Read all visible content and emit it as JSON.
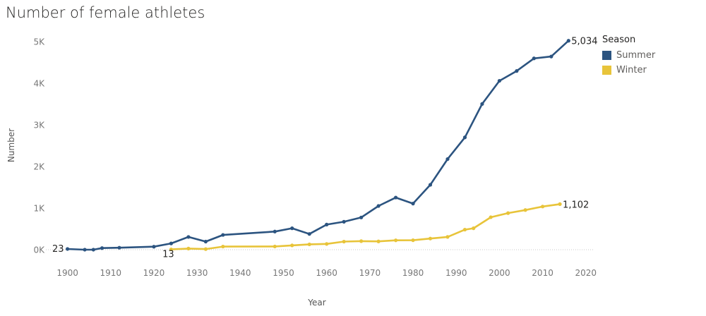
{
  "chart_data": {
    "type": "line",
    "title": "Number of female athletes",
    "xlabel": "Year",
    "ylabel": "Number",
    "xlim": [
      1895,
      2022
    ],
    "ylim": [
      -300,
      5250
    ],
    "x_ticks": [
      1900,
      1910,
      1920,
      1930,
      1940,
      1950,
      1960,
      1970,
      1980,
      1990,
      2000,
      2010,
      2020
    ],
    "y_ticks": [
      {
        "value": 0,
        "label": "0K"
      },
      {
        "value": 1000,
        "label": "1K"
      },
      {
        "value": 2000,
        "label": "2K"
      },
      {
        "value": 3000,
        "label": "3K"
      },
      {
        "value": 4000,
        "label": "4K"
      },
      {
        "value": 5000,
        "label": "5K"
      }
    ],
    "grid": false,
    "legend": {
      "title": "Season",
      "position": "right"
    },
    "series": [
      {
        "name": "Summer",
        "color": "#2c5480",
        "x": [
          1900,
          1904,
          1906,
          1908,
          1912,
          1920,
          1924,
          1928,
          1932,
          1936,
          1948,
          1952,
          1956,
          1960,
          1964,
          1968,
          1972,
          1976,
          1980,
          1984,
          1988,
          1992,
          1996,
          2000,
          2004,
          2008,
          2012,
          2016
        ],
        "y": [
          23,
          6,
          6,
          44,
          53,
          78,
          156,
          312,
          201,
          361,
          442,
          521,
          384,
          610,
          678,
          781,
          1058,
          1260,
          1115,
          1567,
          2186,
          2708,
          3512,
          4069,
          4306,
          4609,
          4654,
          5034
        ],
        "labels": [
          {
            "x": 1900,
            "text": "23"
          },
          {
            "x": 2016,
            "text": "5,034"
          }
        ]
      },
      {
        "name": "Winter",
        "color": "#e8c43a",
        "x": [
          1924,
          1928,
          1932,
          1936,
          1948,
          1952,
          1956,
          1960,
          1964,
          1968,
          1972,
          1976,
          1980,
          1984,
          1988,
          1992,
          1994,
          1998,
          2002,
          2006,
          2010,
          2014
        ],
        "y": [
          13,
          33,
          20,
          81,
          83,
          109,
          134,
          144,
          200,
          211,
          205,
          231,
          233,
          274,
          313,
          488,
          521,
          787,
          886,
          960,
          1044,
          1102
        ],
        "labels": [
          {
            "x": 1924,
            "text": "13"
          },
          {
            "x": 2014,
            "text": "1,102"
          }
        ]
      }
    ]
  }
}
